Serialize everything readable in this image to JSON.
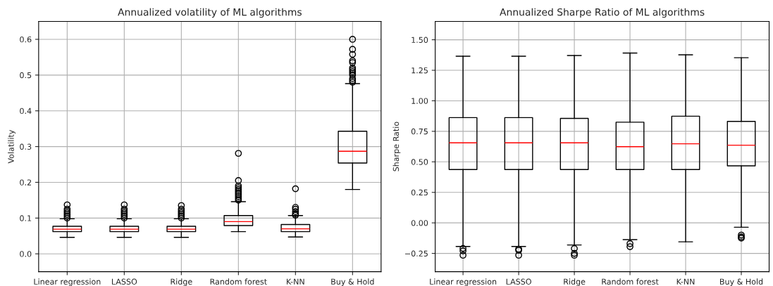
{
  "chart_data": [
    {
      "type": "box",
      "title": "Annualized volatility of ML algorithms",
      "ylabel": "Volatility",
      "categories": [
        "Linear regression",
        "LASSO",
        "Ridge",
        "Random forest",
        "K-NN",
        "Buy & Hold"
      ],
      "ylim": [
        -0.05,
        0.65
      ],
      "yticks": [
        {
          "value": 0.0,
          "label": "0.0"
        },
        0.1,
        0.2,
        0.3,
        0.4,
        0.5,
        0.6
      ],
      "grid": true,
      "boxes": [
        {
          "low": 0.046,
          "q1": 0.062,
          "median": 0.069,
          "q3": 0.077,
          "high": 0.098,
          "outliers": [
            0.1,
            0.105,
            0.11,
            0.115,
            0.12,
            0.125,
            0.137
          ]
        },
        {
          "low": 0.046,
          "q1": 0.062,
          "median": 0.069,
          "q3": 0.077,
          "high": 0.098,
          "outliers": [
            0.1,
            0.105,
            0.11,
            0.115,
            0.12,
            0.125,
            0.137
          ]
        },
        {
          "low": 0.046,
          "q1": 0.062,
          "median": 0.069,
          "q3": 0.077,
          "high": 0.098,
          "outliers": [
            0.1,
            0.105,
            0.11,
            0.115,
            0.12,
            0.125,
            0.135
          ]
        },
        {
          "low": 0.062,
          "q1": 0.079,
          "median": 0.09,
          "q3": 0.107,
          "high": 0.146,
          "outliers": [
            0.15,
            0.155,
            0.16,
            0.165,
            0.17,
            0.175,
            0.18,
            0.185,
            0.19,
            0.205,
            0.281
          ]
        },
        {
          "low": 0.047,
          "q1": 0.062,
          "median": 0.07,
          "q3": 0.082,
          "high": 0.107,
          "outliers": [
            0.108,
            0.112,
            0.118,
            0.125,
            0.13,
            0.182
          ]
        },
        {
          "low": 0.18,
          "q1": 0.254,
          "median": 0.287,
          "q3": 0.343,
          "high": 0.476,
          "outliers": [
            0.48,
            0.485,
            0.49,
            0.5,
            0.505,
            0.51,
            0.515,
            0.52,
            0.535,
            0.54,
            0.558,
            0.572,
            0.6
          ]
        }
      ]
    },
    {
      "type": "box",
      "title": "Annualized Sharpe Ratio of ML algorithms",
      "ylabel": "Sharpe Ratio",
      "categories": [
        "Linear regression",
        "LASSO",
        "Ridge",
        "Random forest",
        "K-NN",
        "Buy & Hold"
      ],
      "ylim": [
        -0.4,
        1.65
      ],
      "yticks": [
        {
          "value": -0.25,
          "label": "−0.25"
        },
        {
          "value": 0.0,
          "label": "0.00"
        },
        {
          "value": 0.25,
          "label": "0.25"
        },
        {
          "value": 0.5,
          "label": "0.50"
        },
        {
          "value": 0.75,
          "label": "0.75"
        },
        {
          "value": 1.0,
          "label": "1.00"
        },
        {
          "value": 1.25,
          "label": "1.25"
        },
        {
          "value": 1.5,
          "label": "1.50"
        }
      ],
      "grid": true,
      "boxes": [
        {
          "low": -0.193,
          "q1": 0.437,
          "median": 0.656,
          "q3": 0.862,
          "high": 1.365,
          "outliers": [
            -0.21,
            -0.23,
            -0.265
          ]
        },
        {
          "low": -0.193,
          "q1": 0.437,
          "median": 0.656,
          "q3": 0.862,
          "high": 1.365,
          "outliers": [
            -0.215,
            -0.225,
            -0.265
          ]
        },
        {
          "low": -0.181,
          "q1": 0.437,
          "median": 0.656,
          "q3": 0.856,
          "high": 1.371,
          "outliers": [
            -0.21,
            -0.25,
            -0.265
          ]
        },
        {
          "low": -0.137,
          "q1": 0.437,
          "median": 0.624,
          "q3": 0.825,
          "high": 1.391,
          "outliers": [
            -0.17,
            -0.195
          ]
        },
        {
          "low": -0.155,
          "q1": 0.437,
          "median": 0.648,
          "q3": 0.874,
          "high": 1.377
        },
        {
          "low": -0.036,
          "q1": 0.467,
          "median": 0.636,
          "q3": 0.831,
          "high": 1.353,
          "outliers": [
            -0.1,
            -0.115,
            -0.125
          ]
        }
      ]
    }
  ]
}
